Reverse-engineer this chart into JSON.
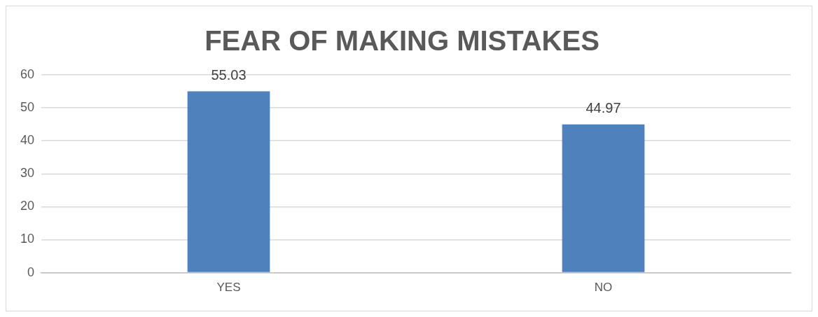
{
  "chart_data": {
    "type": "bar",
    "title": "FEAR OF MAKING MISTAKES",
    "categories": [
      "YES",
      "NO"
    ],
    "values": [
      55.03,
      44.97
    ],
    "color": "#4f81bd",
    "ylim": [
      0,
      60
    ],
    "yticks": [
      0,
      10,
      20,
      30,
      40,
      50,
      60
    ],
    "grid": "y",
    "data_labels": true,
    "legend": false
  }
}
